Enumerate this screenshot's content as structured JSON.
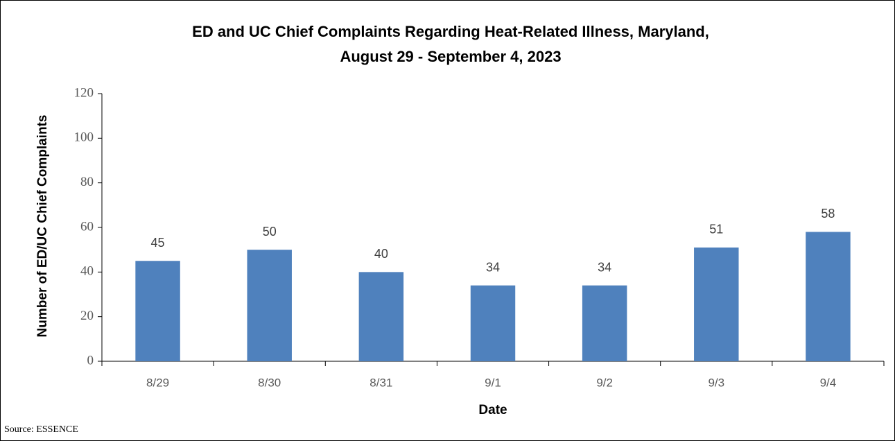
{
  "chart_data": {
    "type": "bar",
    "title": [
      "ED and UC Chief Complaints Regarding Heat-Related Illness, Maryland,",
      "August 29 - September 4, 2023"
    ],
    "x_label": "Date",
    "y_label": "Number of ED/UC Chief Complaints",
    "source": "Source: ESSENCE",
    "categories": [
      "8/29",
      "8/30",
      "8/31",
      "9/1",
      "9/2",
      "9/3",
      "9/4"
    ],
    "values": [
      45,
      50,
      40,
      34,
      34,
      51,
      58
    ],
    "color": "#4f81bd",
    "ylim": [
      0,
      120
    ],
    "yticks": [
      0,
      20,
      40,
      60,
      80,
      100,
      120
    ],
    "grid": false
  }
}
